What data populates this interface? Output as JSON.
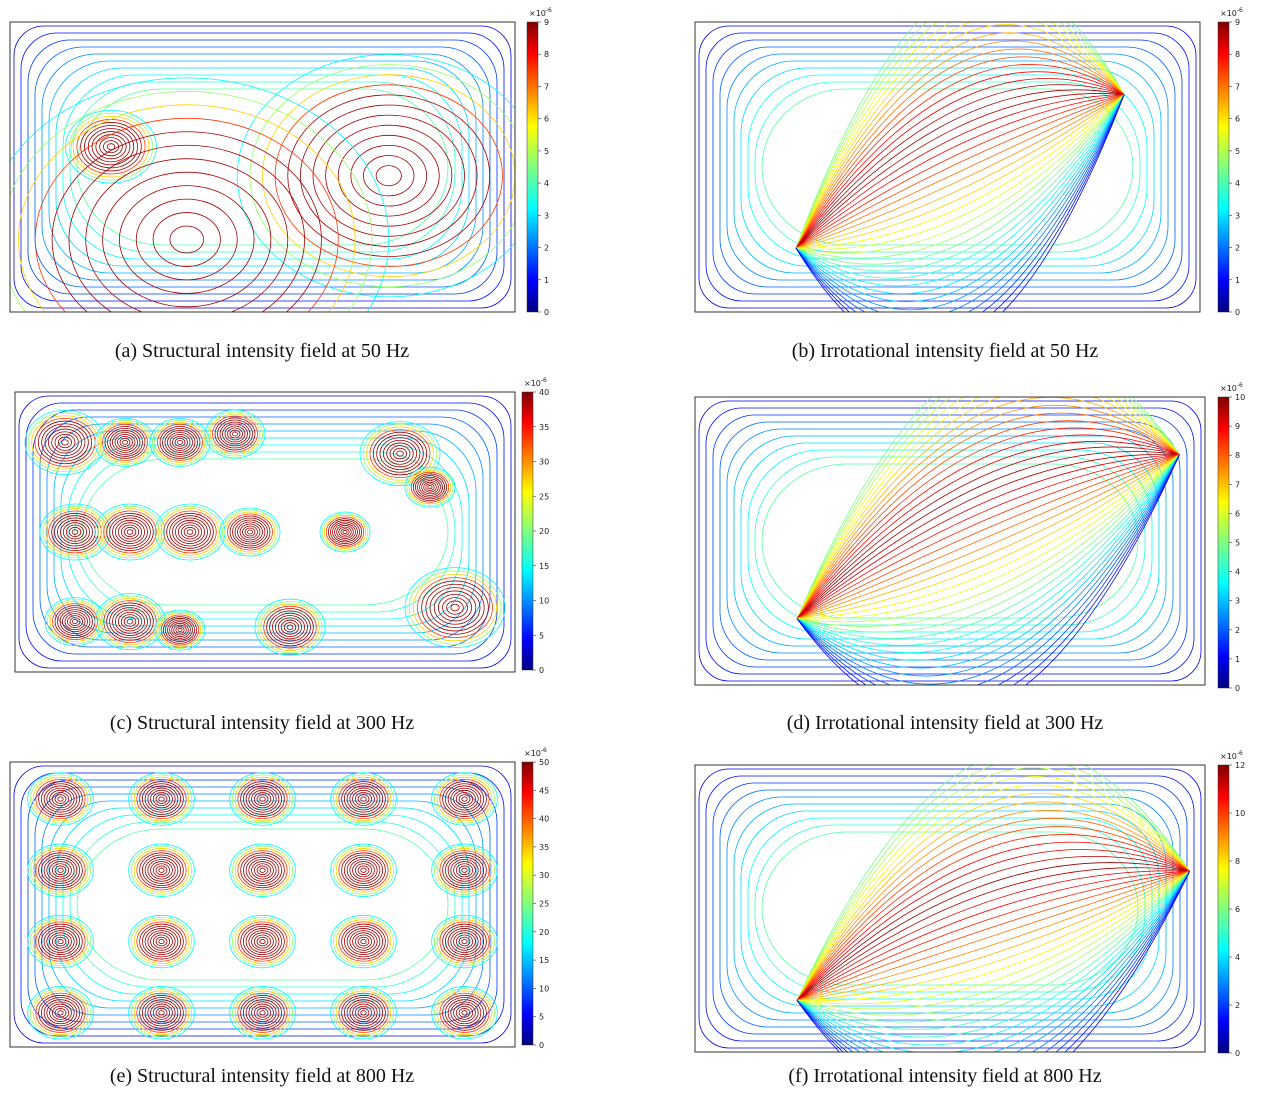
{
  "panels": [
    {
      "caption": "(a) Structural intensity field at 50 Hz",
      "colorbar": {
        "multiplier": "×10",
        "exponent": "-6",
        "ticks": [
          0,
          1,
          2,
          3,
          4,
          5,
          6,
          7,
          8,
          9
        ]
      }
    },
    {
      "caption": "(b) Irrotational intensity field at 50 Hz",
      "colorbar": {
        "multiplier": "×10",
        "exponent": "-6",
        "ticks": [
          0,
          1,
          2,
          3,
          4,
          5,
          6,
          7,
          8,
          9
        ]
      }
    },
    {
      "caption": "(c) Structural intensity field at 300 Hz",
      "colorbar": {
        "multiplier": "×10",
        "exponent": "-6",
        "ticks": [
          0,
          5,
          10,
          15,
          20,
          25,
          30,
          35,
          40
        ]
      }
    },
    {
      "caption": "(d) Irrotational intensity field at 300 Hz",
      "colorbar": {
        "multiplier": "×10",
        "exponent": "-6",
        "ticks": [
          0,
          1,
          2,
          3,
          4,
          5,
          6,
          7,
          8,
          9,
          10
        ]
      }
    },
    {
      "caption": "(e) Structural intensity field at 800 Hz",
      "colorbar": {
        "multiplier": "×10",
        "exponent": "-6",
        "ticks": [
          0,
          5,
          10,
          15,
          20,
          25,
          30,
          35,
          40,
          45,
          50
        ]
      }
    },
    {
      "caption": "(f) Irrotational intensity field at 800 Hz",
      "colorbar": {
        "multiplier": "×10",
        "exponent": "-6",
        "ticks": [
          0,
          2,
          4,
          6,
          8,
          10,
          12
        ]
      }
    }
  ]
}
